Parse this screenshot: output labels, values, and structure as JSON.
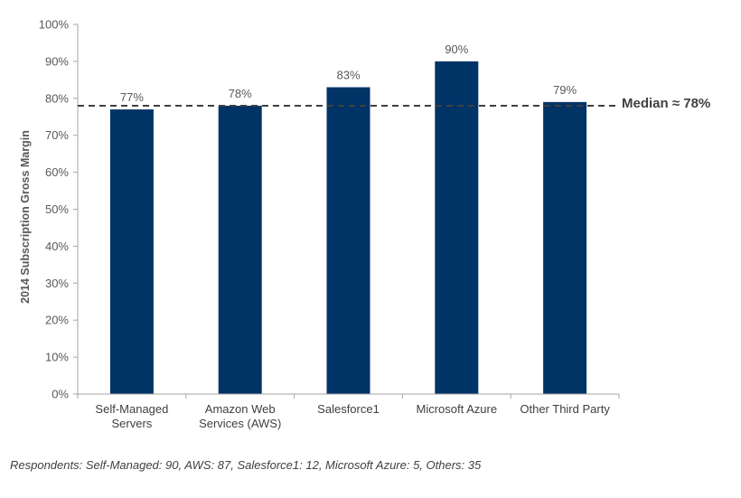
{
  "chart_data": {
    "type": "bar",
    "categories": [
      [
        "Self-Managed",
        "Servers"
      ],
      [
        "Amazon Web",
        "Services (AWS)"
      ],
      [
        "Salesforce1"
      ],
      [
        "Microsoft Azure"
      ],
      [
        "Other Third Party"
      ]
    ],
    "values": [
      77,
      78,
      83,
      90,
      79
    ],
    "data_labels": [
      "77%",
      "78%",
      "83%",
      "90%",
      "79%"
    ],
    "ylabel": "2014 Subscription Gross Margin",
    "ylim": [
      0,
      100
    ],
    "yticks": [
      0,
      10,
      20,
      30,
      40,
      50,
      60,
      70,
      80,
      90,
      100
    ],
    "ytick_labels": [
      "0%",
      "10%",
      "20%",
      "30%",
      "40%",
      "50%",
      "60%",
      "70%",
      "80%",
      "90%",
      "100%"
    ],
    "bar_color": "#003366",
    "grid": false,
    "reference_line": {
      "value": 78,
      "label": "Median ≈ 78%",
      "style": "dashed",
      "color": "#404040"
    }
  },
  "footnote": "Respondents: Self-Managed: 90, AWS: 87, Salesforce1: 12, Microsoft Azure: 5, Others: 35"
}
